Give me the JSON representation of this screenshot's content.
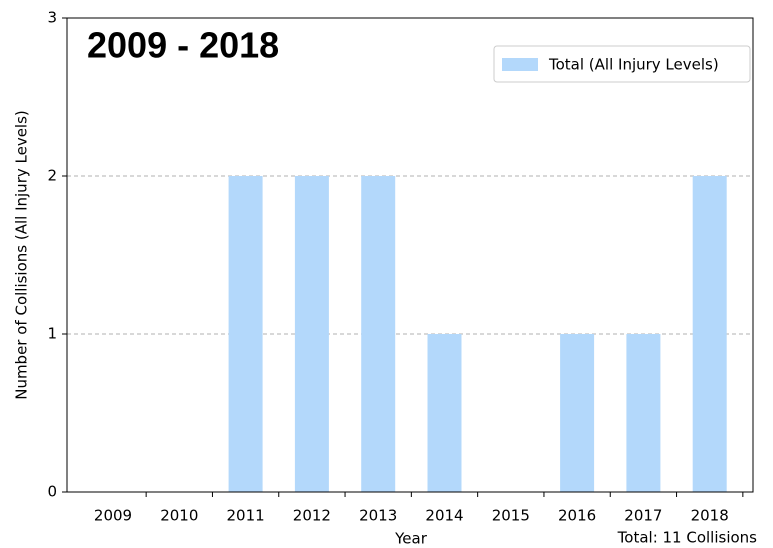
{
  "chart_data": {
    "type": "bar",
    "title": "2009 - 2018",
    "x_label": "Year",
    "y_label": "Number of Collisions (All Injury Levels)",
    "annotation": "Total: 11 Collisions",
    "categories": [
      "2009",
      "2010",
      "2011",
      "2012",
      "2013",
      "2014",
      "2015",
      "2016",
      "2017",
      "2018"
    ],
    "series": [
      {
        "name": "Total (All Injury Levels)",
        "color": "#b3d8fb",
        "values": [
          0,
          0,
          2,
          2,
          2,
          1,
          0,
          1,
          1,
          2
        ]
      }
    ],
    "ylim": [
      0,
      3
    ],
    "yticks": [
      0,
      1,
      2,
      3
    ],
    "grid": true,
    "legend": "upper right"
  }
}
